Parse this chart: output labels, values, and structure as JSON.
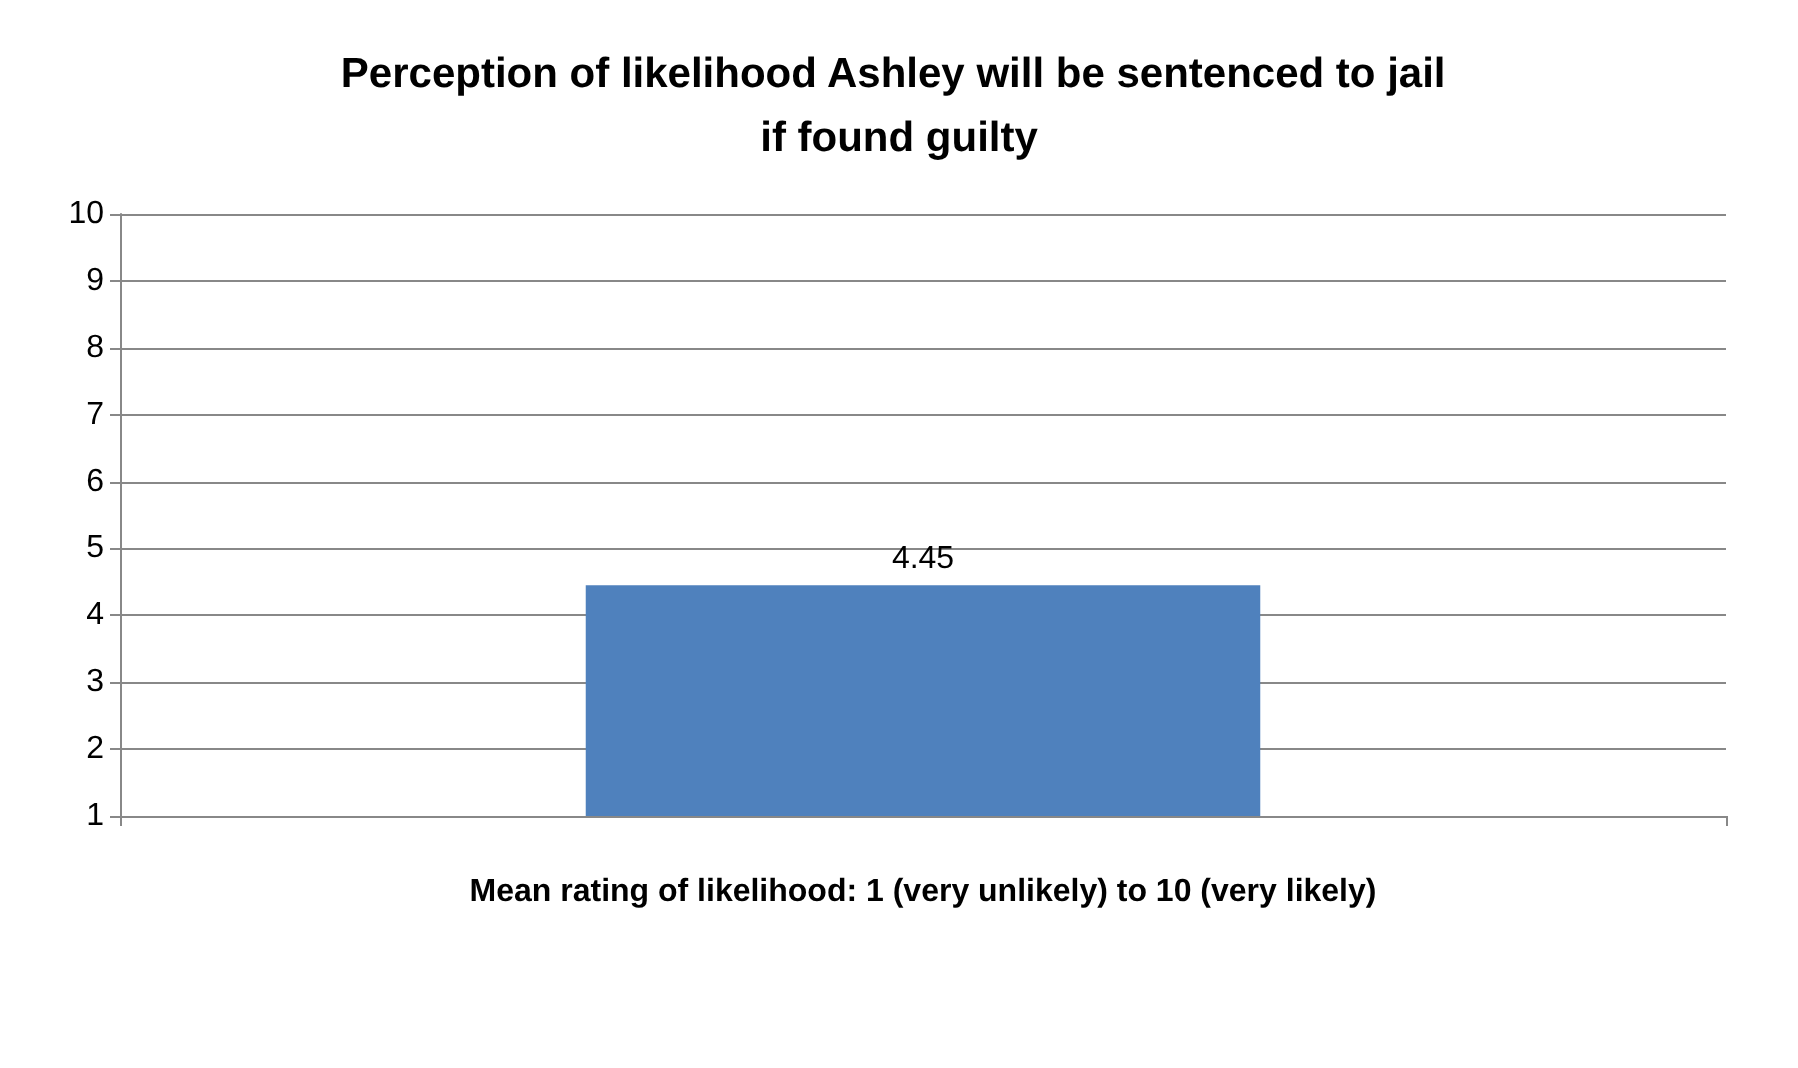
{
  "chart_data": {
    "type": "bar",
    "title": "Perception of likelihood Ashley will be sentenced to jail if found guilty",
    "xlabel": "Mean rating of likelihood: 1 (very unlikely) to 10 (very likely)",
    "categories": [
      null
    ],
    "values": [
      4.45
    ],
    "color": "#4f81bd",
    "ylim": [
      1,
      10
    ],
    "yticks": [
      1,
      2,
      3,
      4,
      5,
      6,
      7,
      8,
      9,
      10
    ],
    "grid": "y",
    "data_labels": true
  }
}
